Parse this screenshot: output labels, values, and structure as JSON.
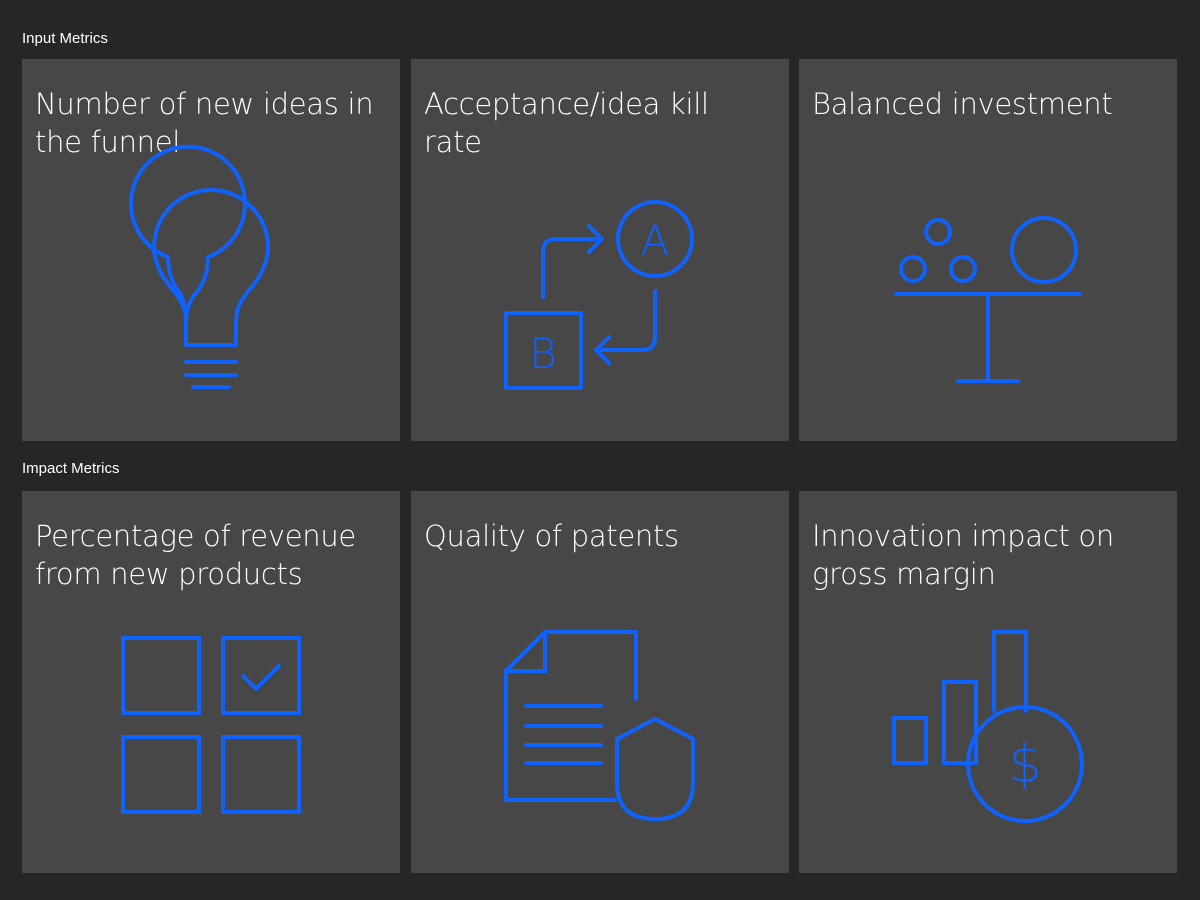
{
  "sections": {
    "input": {
      "label": "Input Metrics",
      "cards": [
        {
          "title": "Number of new ideas in the funnel",
          "icon": "lightbulb-icon"
        },
        {
          "title": "Acceptance/idea kill rate",
          "icon": "a-b-exchange-icon",
          "icon_letters": [
            "A",
            "B"
          ]
        },
        {
          "title": "Balanced investment",
          "icon": "balance-scale-icon"
        }
      ]
    },
    "impact": {
      "label": "Impact Metrics",
      "cards": [
        {
          "title": "Percentage of revenue from new products",
          "icon": "checkbox-grid-icon"
        },
        {
          "title": "Quality of patents",
          "icon": "document-shield-icon"
        },
        {
          "title": "Innovation impact on gross margin",
          "icon": "bar-chart-dollar-icon",
          "icon_symbol": "$"
        }
      ]
    }
  },
  "colors": {
    "background": "#262626",
    "card": "#474747",
    "text": "#ffffff",
    "icon_stroke": "#0f62fe"
  }
}
